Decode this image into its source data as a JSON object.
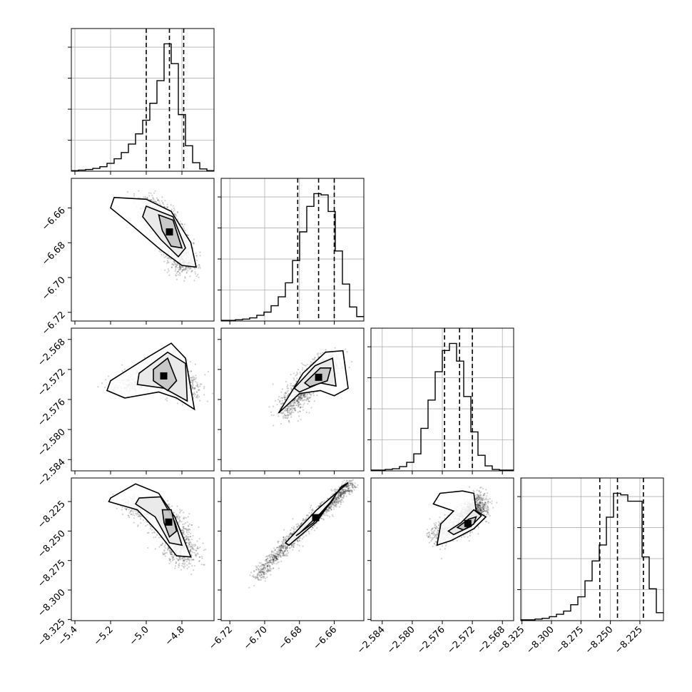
{
  "chart_data": {
    "type": "corner",
    "parameters": [
      {
        "ticks": [
          -5.4,
          -5.2,
          -5.0,
          -4.8
        ],
        "tick_labels": [
          "−5.4",
          "−5.2",
          "−5.0",
          "−4.8"
        ],
        "range": [
          -5.42,
          -4.62
        ]
      },
      {
        "ticks": [
          -6.72,
          -6.7,
          -6.68,
          -6.66
        ],
        "tick_labels": [
          "−6.72",
          "−6.70",
          "−6.68",
          "−6.66"
        ],
        "range": [
          -6.725,
          -6.643
        ]
      },
      {
        "ticks": [
          -2.584,
          -2.58,
          -2.576,
          -2.572,
          -2.568
        ],
        "tick_labels": [
          "−2.584",
          "−2.580",
          "−2.576",
          "−2.572",
          "−2.568"
        ],
        "range": [
          -2.5855,
          -2.5665
        ]
      },
      {
        "ticks": [
          -8.325,
          -8.3,
          -8.275,
          -8.25,
          -8.225
        ],
        "tick_labels": [
          "−8.325",
          "−8.300",
          "−8.275",
          "−8.250",
          "−8.225"
        ],
        "range": [
          -8.326,
          -8.205
        ]
      }
    ],
    "marginals": [
      {
        "counts": [
          1,
          2,
          3,
          5,
          8,
          14,
          22,
          33,
          48,
          66,
          90,
          120,
          160,
          225,
          190,
          100,
          45,
          15,
          4,
          1
        ],
        "quantiles": [
          -5.0,
          -4.87,
          -4.79
        ]
      },
      {
        "counts": [
          1,
          1,
          2,
          3,
          5,
          9,
          14,
          24,
          38,
          60,
          95,
          140,
          180,
          200,
          198,
          172,
          110,
          58,
          22,
          7
        ],
        "quantiles": [
          -6.681,
          -6.669,
          -6.66
        ]
      },
      {
        "counts": [
          1,
          1,
          2,
          3,
          6,
          12,
          24,
          60,
          100,
          140,
          170,
          180,
          155,
          105,
          55,
          22,
          7,
          2,
          1,
          1
        ],
        "quantiles": [
          -2.5757,
          -2.5737,
          -2.572
        ]
      },
      {
        "counts": [
          1,
          1,
          2,
          3,
          5,
          8,
          12,
          20,
          30,
          50,
          75,
          95,
          130,
          160,
          158,
          150,
          150,
          80,
          40,
          10
        ],
        "quantiles": [
          -8.259,
          -8.244,
          -8.222
        ]
      }
    ],
    "pairs": [
      {
        "row": 1,
        "col": 0,
        "points": [
          [
            -5.0,
            -6.655
          ],
          [
            -4.87,
            -6.672
          ],
          [
            -4.78,
            -6.695
          ]
        ],
        "spread": [
          0.07,
          0.005
        ],
        "contours": [
          [
            [
              -5.18,
              -6.654
            ],
            [
              -5.0,
              -6.655
            ],
            [
              -4.86,
              -6.662
            ],
            [
              -4.75,
              -6.68
            ],
            [
              -4.72,
              -6.694
            ],
            [
              -4.8,
              -6.693
            ],
            [
              -4.92,
              -6.684
            ],
            [
              -5.08,
              -6.67
            ],
            [
              -5.2,
              -6.66
            ]
          ],
          [
            [
              -5.0,
              -6.659
            ],
            [
              -4.85,
              -6.665
            ],
            [
              -4.78,
              -6.683
            ],
            [
              -4.82,
              -6.688
            ],
            [
              -4.92,
              -6.678
            ],
            [
              -5.02,
              -6.665
            ]
          ],
          [
            [
              -4.93,
              -6.664
            ],
            [
              -4.85,
              -6.667
            ],
            [
              -4.8,
              -6.683
            ],
            [
              -4.86,
              -6.682
            ],
            [
              -4.91,
              -6.673
            ]
          ]
        ]
      },
      {
        "row": 2,
        "col": 0,
        "points": [
          [
            -5.15,
            -2.5745
          ],
          [
            -4.87,
            -2.572
          ],
          [
            -4.78,
            -2.575
          ]
        ],
        "spread": [
          0.08,
          0.0012
        ],
        "contours": [
          [
            [
              -5.2,
              -2.5735
            ],
            [
              -4.98,
              -2.5702
            ],
            [
              -4.86,
              -2.5685
            ],
            [
              -4.78,
              -2.5705
            ],
            [
              -4.73,
              -2.5773
            ],
            [
              -4.83,
              -2.5758
            ],
            [
              -4.93,
              -2.575
            ],
            [
              -5.12,
              -2.5758
            ],
            [
              -5.22,
              -2.5748
            ]
          ],
          [
            [
              -5.04,
              -2.5725
            ],
            [
              -4.88,
              -2.5697
            ],
            [
              -4.78,
              -2.5712
            ],
            [
              -4.77,
              -2.5762
            ],
            [
              -4.9,
              -2.5745
            ],
            [
              -5.05,
              -2.574
            ]
          ],
          [
            [
              -4.96,
              -2.572
            ],
            [
              -4.88,
              -2.5705
            ],
            [
              -4.83,
              -2.5735
            ],
            [
              -4.88,
              -2.5748
            ],
            [
              -4.96,
              -2.5735
            ]
          ]
        ]
      },
      {
        "row": 2,
        "col": 1,
        "points": [
          [
            -6.69,
            -2.578
          ],
          [
            -6.674,
            -2.5735
          ],
          [
            -6.66,
            -2.571
          ]
        ],
        "spread": [
          0.006,
          0.0014
        ],
        "contours": [
          [
            [
              -6.692,
              -2.5778
            ],
            [
              -6.678,
              -2.5725
            ],
            [
              -6.665,
              -2.5697
            ],
            [
              -6.655,
              -2.5695
            ],
            [
              -6.652,
              -2.5745
            ],
            [
              -6.66,
              -2.5755
            ],
            [
              -6.668,
              -2.5748
            ],
            [
              -6.68,
              -2.5752
            ]
          ],
          [
            [
              -6.683,
              -2.5745
            ],
            [
              -6.671,
              -2.5715
            ],
            [
              -6.661,
              -2.5705
            ],
            [
              -6.659,
              -2.5742
            ],
            [
              -6.668,
              -2.5738
            ],
            [
              -6.68,
              -2.575
            ]
          ],
          [
            [
              -6.677,
              -2.5738
            ],
            [
              -6.668,
              -2.5718
            ],
            [
              -6.662,
              -2.5718
            ],
            [
              -6.664,
              -2.5735
            ],
            [
              -6.674,
              -2.5743
            ]
          ]
        ]
      },
      {
        "row": 3,
        "col": 0,
        "points": [
          [
            -5.1,
            -8.225
          ],
          [
            -4.88,
            -8.24
          ],
          [
            -4.78,
            -8.275
          ]
        ],
        "spread": [
          0.08,
          0.008
        ],
        "contours": [
          [
            [
              -5.2,
              -8.222
            ],
            [
              -5.06,
              -8.21
            ],
            [
              -4.93,
              -8.218
            ],
            [
              -4.84,
              -8.238
            ],
            [
              -4.75,
              -8.272
            ],
            [
              -4.83,
              -8.271
            ],
            [
              -4.94,
              -8.25
            ],
            [
              -5.05,
              -8.232
            ],
            [
              -5.21,
              -8.225
            ]
          ],
          [
            [
              -5.04,
              -8.222
            ],
            [
              -4.92,
              -8.221
            ],
            [
              -4.84,
              -8.242
            ],
            [
              -4.8,
              -8.262
            ],
            [
              -4.87,
              -8.26
            ],
            [
              -4.95,
              -8.238
            ],
            [
              -5.06,
              -8.227
            ]
          ],
          [
            [
              -4.91,
              -8.232
            ],
            [
              -4.86,
              -8.232
            ],
            [
              -4.83,
              -8.25
            ],
            [
              -4.87,
              -8.255
            ],
            [
              -4.9,
              -8.243
            ]
          ]
        ]
      },
      {
        "row": 3,
        "col": 1,
        "points": [
          [
            -6.705,
            -8.29
          ],
          [
            -6.68,
            -8.25
          ],
          [
            -6.65,
            -8.21
          ]
        ],
        "spread": [
          0.003,
          0.005
        ],
        "contours": [
          [
            [
              -6.688,
              -8.26
            ],
            [
              -6.67,
              -8.232
            ],
            [
              -6.652,
              -8.209
            ],
            [
              -6.656,
              -8.2125
            ],
            [
              -6.67,
              -8.242
            ],
            [
              -6.686,
              -8.262
            ]
          ],
          [
            [
              -6.68,
              -8.252
            ],
            [
              -6.668,
              -8.235
            ],
            [
              -6.66,
              -8.222
            ],
            [
              -6.662,
              -8.226
            ],
            [
              -6.672,
              -8.243
            ],
            [
              -6.682,
              -8.254
            ]
          ]
        ]
      },
      {
        "row": 3,
        "col": 2,
        "points": [
          [
            -2.577,
            -8.255
          ],
          [
            -2.5725,
            -8.24
          ],
          [
            -2.571,
            -8.225
          ]
        ],
        "spread": [
          0.0014,
          0.008
        ],
        "contours": [
          [
            [
              -2.5767,
              -8.262
            ],
            [
              -2.5762,
              -8.244
            ],
            [
              -2.5745,
              -8.233
            ],
            [
              -2.5772,
              -8.227
            ],
            [
              -2.5763,
              -8.218
            ],
            [
              -2.5733,
              -8.216
            ],
            [
              -2.5718,
              -8.218
            ],
            [
              -2.5715,
              -8.233
            ],
            [
              -2.5702,
              -8.238
            ],
            [
              -2.5718,
              -8.248
            ],
            [
              -2.5748,
              -8.258
            ]
          ],
          [
            [
              -2.5752,
              -8.25
            ],
            [
              -2.5735,
              -8.243
            ],
            [
              -2.5718,
              -8.232
            ],
            [
              -2.5708,
              -8.237
            ],
            [
              -2.5722,
              -8.246
            ],
            [
              -2.5745,
              -8.253
            ]
          ],
          [
            [
              -2.574,
              -8.247
            ],
            [
              -2.5725,
              -8.24
            ],
            [
              -2.5715,
              -8.238
            ],
            [
              -2.5718,
              -8.244
            ],
            [
              -2.5732,
              -8.249
            ]
          ]
        ]
      }
    ]
  }
}
